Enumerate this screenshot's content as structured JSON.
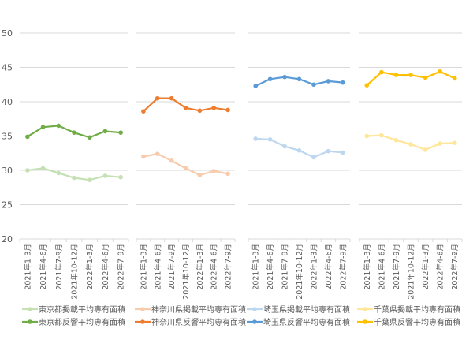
{
  "chart_data": {
    "type": "line",
    "title": "",
    "ylim": [
      20,
      50
    ],
    "yticks": [
      20,
      25,
      30,
      35,
      40,
      45,
      50
    ],
    "grid": true,
    "legend_placement": "bottom",
    "categories": [
      "2021年1-3月",
      "2021年4-6月",
      "2021年7-9月",
      "2021年10-12月",
      "2022年1-3月",
      "2022年4-6月",
      "2022年7-9月"
    ],
    "panels": [
      {
        "name": "東京都",
        "series": [
          {
            "name": "東京都掲載平均専有面積",
            "color": "#c5e0b4",
            "values": [
              30.0,
              30.3,
              29.6,
              28.9,
              28.6,
              29.2,
              29.0
            ]
          },
          {
            "name": "東京都反響平均専有面積",
            "color": "#70ad47",
            "values": [
              34.9,
              36.3,
              36.5,
              35.5,
              34.8,
              35.7,
              35.5
            ]
          }
        ]
      },
      {
        "name": "神奈川県",
        "series": [
          {
            "name": "神奈川県掲載平均専有面積",
            "color": "#f8cbad",
            "values": [
              32.0,
              32.4,
              31.4,
              30.3,
              29.3,
              29.9,
              29.5
            ]
          },
          {
            "name": "神奈川県反響平均専有面積",
            "color": "#ed7d31",
            "values": [
              38.6,
              40.5,
              40.5,
              39.1,
              38.7,
              39.1,
              38.8
            ]
          }
        ]
      },
      {
        "name": "埼玉県",
        "series": [
          {
            "name": "埼玉県掲載平均専有面積",
            "color": "#bdd7ee",
            "values": [
              34.6,
              34.5,
              33.5,
              32.9,
              31.9,
              32.8,
              32.6
            ]
          },
          {
            "name": "埼玉県反響平均専有面積",
            "color": "#5b9bd5",
            "values": [
              42.3,
              43.3,
              43.6,
              43.3,
              42.5,
              43.0,
              42.8
            ]
          }
        ]
      },
      {
        "name": "千葉県",
        "series": [
          {
            "name": "千葉県掲載平均専有面積",
            "color": "#ffe699",
            "values": [
              35.0,
              35.1,
              34.4,
              33.8,
              33.0,
              33.9,
              34.0
            ]
          },
          {
            "name": "千葉県反響平均専有面積",
            "color": "#ffc000",
            "values": [
              42.4,
              44.3,
              43.9,
              43.9,
              43.5,
              44.4,
              43.4
            ]
          }
        ]
      }
    ]
  }
}
